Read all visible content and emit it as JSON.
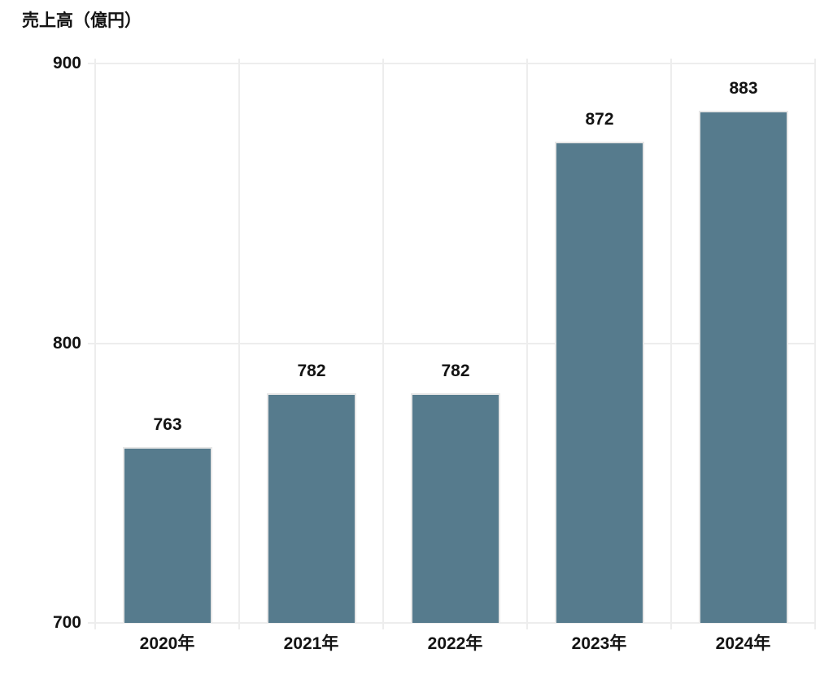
{
  "chart_data": {
    "type": "bar",
    "title": "売上高（億円）",
    "categories": [
      "2020年",
      "2021年",
      "2022年",
      "2023年",
      "2024年"
    ],
    "values": [
      763,
      782,
      782,
      872,
      883
    ],
    "value_labels": [
      "763",
      "782",
      "782",
      "872",
      "883"
    ],
    "ylim": [
      700,
      900
    ],
    "yticks": [
      900,
      800,
      700
    ],
    "ytick_labels": [
      "900",
      "800",
      "700"
    ],
    "grid": "both",
    "legend": "none",
    "xlabel": "",
    "ylabel": "売上高（億円）",
    "colors": {
      "bar_fill": "#567B8D",
      "bar_border": "#e7e7e7",
      "grid_line": "#ededed",
      "text": "#131313",
      "background": "#ffffff"
    }
  }
}
